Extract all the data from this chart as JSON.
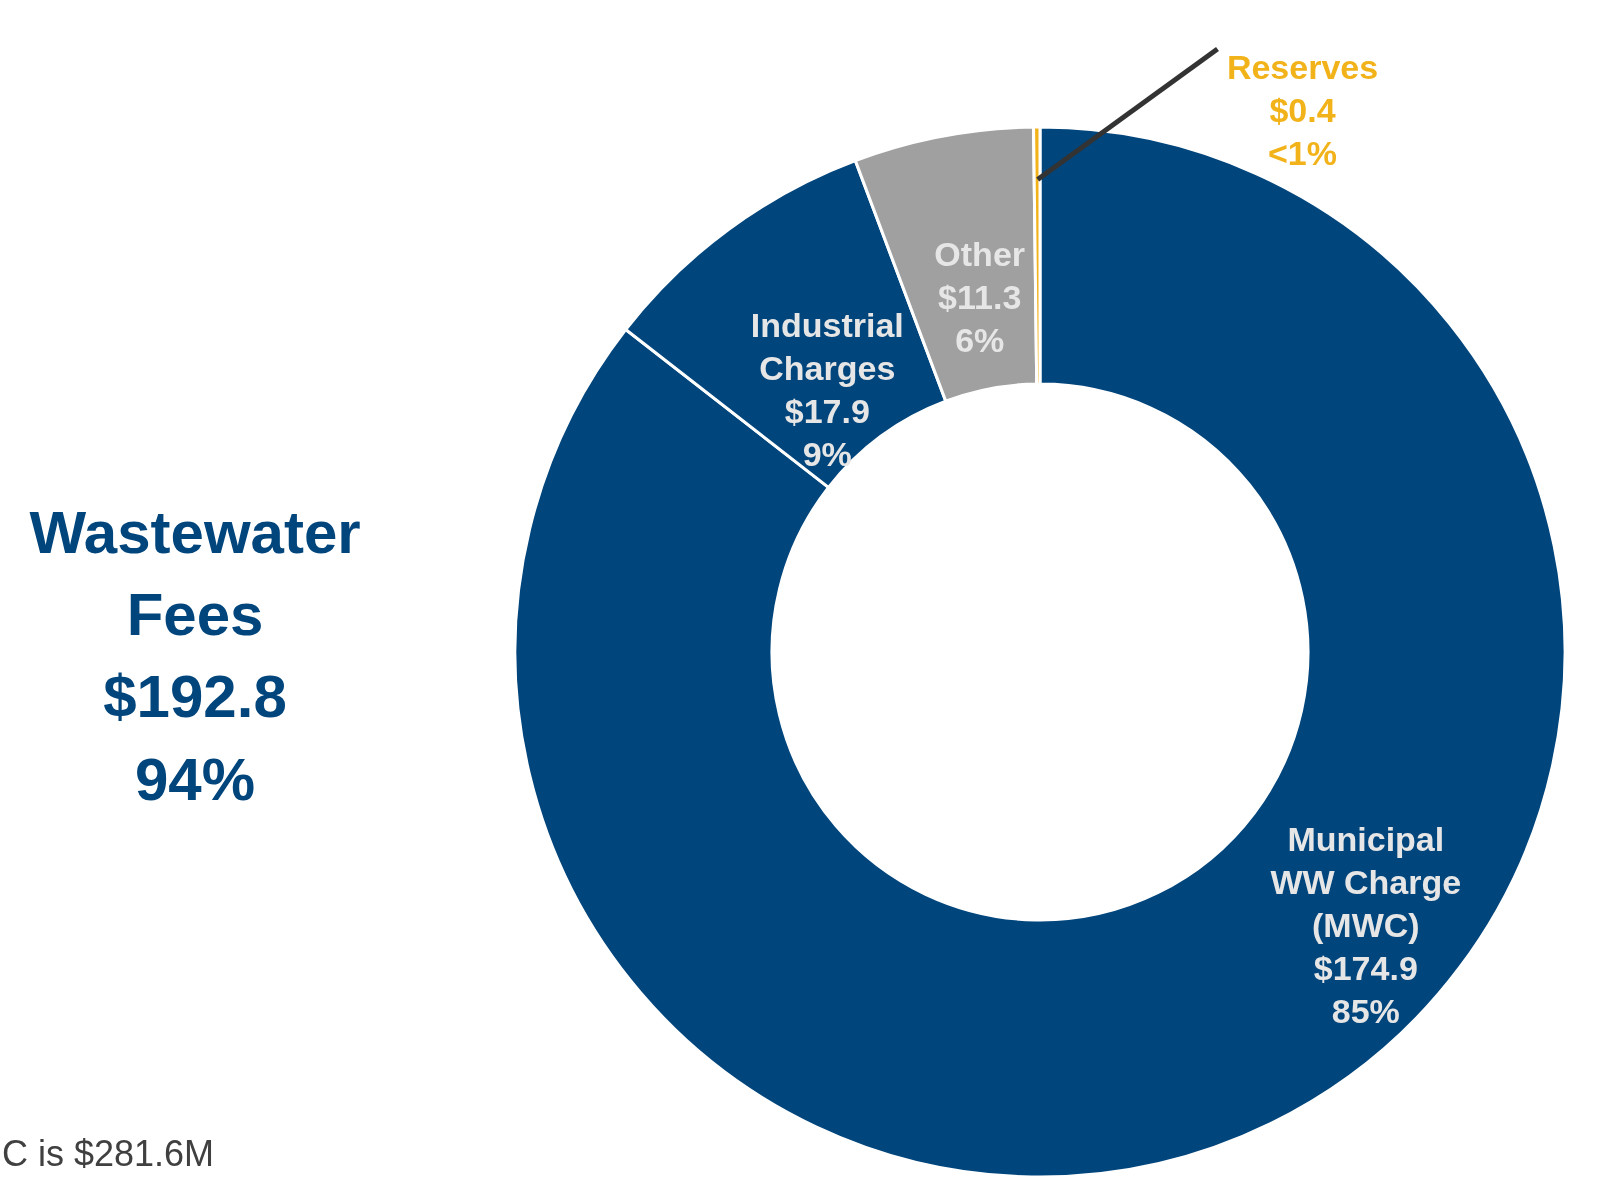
{
  "chart_data": {
    "type": "donut",
    "categories": [
      "Municipal\nWW Charge\n(MWC)",
      "Industrial\nCharges",
      "Other",
      "Reserves"
    ],
    "values": [
      174.9,
      17.9,
      11.3,
      0.4
    ],
    "value_labels": [
      "$174.9\n85%",
      "$17.9\n9%",
      "$11.3\n6%",
      "$0.4\n<1%"
    ],
    "colors": [
      "#00457c",
      "#00457c",
      "#a0a0a0",
      "#f2b31a"
    ],
    "annotations": [
      "Wastewater\nFees\n$192.8\n94%",
      "C is $281.6M"
    ],
    "legend": false
  }
}
